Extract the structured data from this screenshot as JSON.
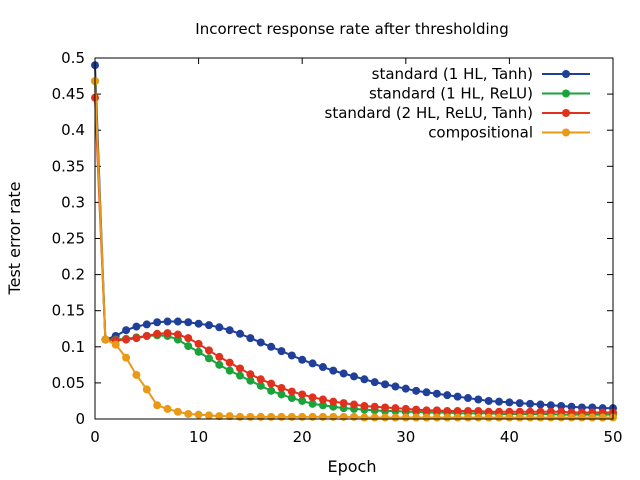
{
  "chart_data": {
    "type": "line",
    "title": "Incorrect response rate after thresholding",
    "xlabel": "Epoch",
    "ylabel": "Test error rate",
    "xlim": [
      0,
      50
    ],
    "ylim": [
      0,
      0.5
    ],
    "x_ticks": [
      "0",
      "10",
      "20",
      "30",
      "40",
      "50"
    ],
    "y_ticks": [
      "0",
      "0.05",
      "0.1",
      "0.15",
      "0.2",
      "0.25",
      "0.3",
      "0.35",
      "0.4",
      "0.45",
      "0.5"
    ],
    "grid": false,
    "legend_position": "top-right",
    "x": [
      0,
      1,
      2,
      3,
      4,
      5,
      6,
      7,
      8,
      9,
      10,
      11,
      12,
      13,
      14,
      15,
      16,
      17,
      18,
      19,
      20,
      21,
      22,
      23,
      24,
      25,
      26,
      27,
      28,
      29,
      30,
      31,
      32,
      33,
      34,
      35,
      36,
      37,
      38,
      39,
      40,
      41,
      42,
      43,
      44,
      45,
      46,
      47,
      48,
      49,
      50
    ],
    "series": [
      {
        "name": "standard (1 HL, Tanh)",
        "color": "#1f3f99",
        "values": [
          0.49,
          0.11,
          0.115,
          0.123,
          0.128,
          0.131,
          0.134,
          0.135,
          0.135,
          0.134,
          0.132,
          0.13,
          0.127,
          0.123,
          0.118,
          0.112,
          0.106,
          0.1,
          0.094,
          0.088,
          0.082,
          0.077,
          0.072,
          0.067,
          0.063,
          0.059,
          0.055,
          0.051,
          0.048,
          0.045,
          0.042,
          0.039,
          0.037,
          0.035,
          0.033,
          0.031,
          0.029,
          0.027,
          0.025,
          0.024,
          0.023,
          0.022,
          0.021,
          0.02,
          0.019,
          0.018,
          0.017,
          0.016,
          0.016,
          0.015,
          0.015
        ]
      },
      {
        "name": "standard (1 HL, ReLU)",
        "color": "#1aa33a",
        "values": [
          0.468,
          0.11,
          0.11,
          0.111,
          0.113,
          0.115,
          0.116,
          0.115,
          0.11,
          0.101,
          0.093,
          0.084,
          0.075,
          0.067,
          0.06,
          0.053,
          0.046,
          0.039,
          0.034,
          0.029,
          0.025,
          0.021,
          0.019,
          0.017,
          0.015,
          0.014,
          0.013,
          0.012,
          0.011,
          0.011,
          0.01,
          0.01,
          0.009,
          0.009,
          0.009,
          0.008,
          0.008,
          0.008,
          0.008,
          0.007,
          0.007,
          0.007,
          0.007,
          0.007,
          0.007,
          0.006,
          0.006,
          0.006,
          0.006,
          0.006,
          0.006
        ]
      },
      {
        "name": "standard (2 HL, ReLU, Tanh)",
        "color": "#e0301e",
        "values": [
          0.445,
          0.11,
          0.109,
          0.11,
          0.112,
          0.115,
          0.118,
          0.119,
          0.117,
          0.112,
          0.104,
          0.095,
          0.086,
          0.078,
          0.07,
          0.062,
          0.055,
          0.049,
          0.043,
          0.038,
          0.034,
          0.03,
          0.027,
          0.024,
          0.022,
          0.02,
          0.018,
          0.017,
          0.016,
          0.015,
          0.014,
          0.013,
          0.012,
          0.012,
          0.011,
          0.011,
          0.011,
          0.011,
          0.01,
          0.01,
          0.01,
          0.01,
          0.01,
          0.01,
          0.01,
          0.01,
          0.009,
          0.009,
          0.009,
          0.009,
          0.009
        ]
      },
      {
        "name": "compositional",
        "color": "#e89a17",
        "values": [
          0.468,
          0.11,
          0.103,
          0.085,
          0.061,
          0.041,
          0.019,
          0.014,
          0.01,
          0.007,
          0.006,
          0.005,
          0.004,
          0.004,
          0.003,
          0.003,
          0.003,
          0.003,
          0.003,
          0.003,
          0.003,
          0.003,
          0.003,
          0.003,
          0.003,
          0.003,
          0.002,
          0.002,
          0.002,
          0.002,
          0.002,
          0.002,
          0.002,
          0.002,
          0.002,
          0.002,
          0.002,
          0.002,
          0.002,
          0.002,
          0.002,
          0.002,
          0.002,
          0.002,
          0.002,
          0.002,
          0.002,
          0.002,
          0.002,
          0.002,
          0.002
        ]
      }
    ]
  }
}
